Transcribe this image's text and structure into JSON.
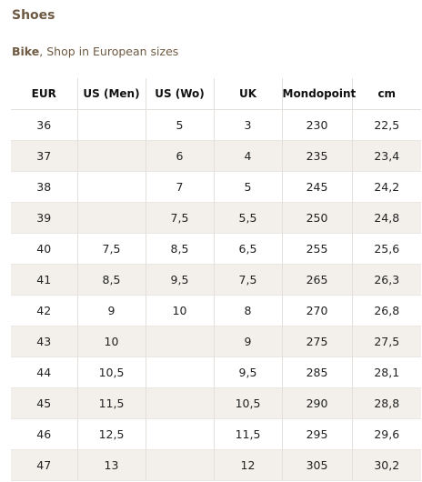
{
  "section_title": "Shoes",
  "subtitle": {
    "bold": "Bike",
    "rest": ", Shop in European sizes"
  },
  "table": {
    "headers": [
      "EUR",
      "US (Men)",
      "US (Wo)",
      "UK",
      "Mondopoint",
      "cm"
    ],
    "rows": [
      [
        "36",
        "",
        "5",
        "3",
        "230",
        "22,5"
      ],
      [
        "37",
        "",
        "6",
        "4",
        "235",
        "23,4"
      ],
      [
        "38",
        "",
        "7",
        "5",
        "245",
        "24,2"
      ],
      [
        "39",
        "",
        "7,5",
        "5,5",
        "250",
        "24,8"
      ],
      [
        "40",
        "7,5",
        "8,5",
        "6,5",
        "255",
        "25,6"
      ],
      [
        "41",
        "8,5",
        "9,5",
        "7,5",
        "265",
        "26,3"
      ],
      [
        "42",
        "9",
        "10",
        "8",
        "270",
        "26,8"
      ],
      [
        "43",
        "10",
        "",
        "9",
        "275",
        "27,5"
      ],
      [
        "44",
        "10,5",
        "",
        "9,5",
        "285",
        "28,1"
      ],
      [
        "45",
        "11,5",
        "",
        "10,5",
        "290",
        "28,8"
      ],
      [
        "46",
        "12,5",
        "",
        "11,5",
        "295",
        "29,6"
      ],
      [
        "47",
        "13",
        "",
        "12",
        "305",
        "30,2"
      ]
    ]
  }
}
